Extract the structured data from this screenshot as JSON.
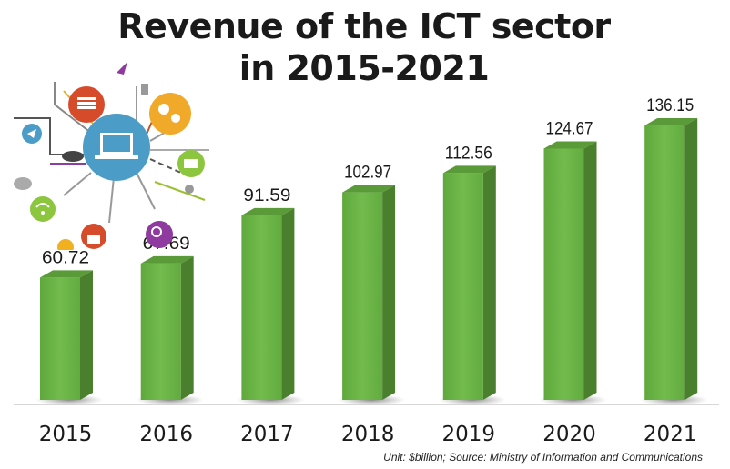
{
  "chart_data": {
    "type": "bar",
    "title": "Revenue of the ICT sector in 2015-2021",
    "title_lines": [
      "Revenue of the ICT sector",
      "in 2015-2021"
    ],
    "categories": [
      "2015",
      "2016",
      "2017",
      "2018",
      "2019",
      "2020",
      "2021"
    ],
    "values": [
      60.72,
      67.69,
      91.59,
      102.97,
      112.56,
      124.67,
      136.15
    ],
    "data_labels": [
      "60.72",
      "67.69",
      "91.59",
      "102.97",
      "112.56",
      "124.67",
      "136.15"
    ],
    "xlabel": "",
    "ylabel": "",
    "ylim": [
      0,
      140
    ],
    "grid": false,
    "legend": "none",
    "bar_color": "#6ab344",
    "bar_side_color": "#4a7f2e",
    "bar_top_color": "#5a9a38",
    "footnote": "Unit: $billion; Source: Ministry of Information and Communications"
  },
  "illustration": {
    "description": "ICT technology icons radiating from a laptop",
    "icons": [
      "laptop-icon",
      "document-icon",
      "gears-icon",
      "mail-icon",
      "wifi-icon",
      "lock-icon",
      "search-icon",
      "star-icon",
      "cloud-icon",
      "chat-icon",
      "heart-icon",
      "robot-icon",
      "rocket-icon",
      "thumbs-up-icon",
      "camera-icon",
      "users-icon",
      "music-icon",
      "send-icon"
    ]
  }
}
